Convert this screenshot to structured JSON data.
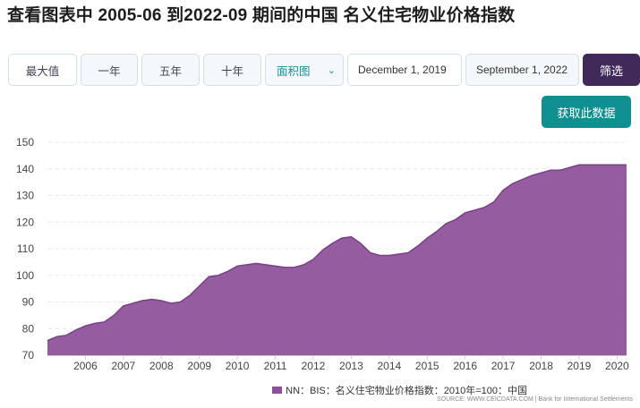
{
  "title": "查看图表中 2005-06 到2022-09 期间的中国 名义住宅物业价格指数",
  "toolbar": {
    "max_label": "最大值",
    "one_year_label": "一年",
    "five_year_label": "五年",
    "ten_year_label": "十年",
    "chart_type_label": "面积图",
    "start_date": "December 1, 2019",
    "end_date": "September 1, 2022",
    "filter_label": "筛选",
    "get_data_label": "获取此数据"
  },
  "icons": {
    "chart_type_dropdown": "chevron-down-icon"
  },
  "colors": {
    "series_fill": "#8c4f98",
    "filter_button": "#3f2a5a",
    "get_data_button": "#0f8f8f"
  },
  "legend_label": "NN：BIS：名义住宅物业价格指数：2010年=100：中国",
  "source_text": "SOURCE: WWW.CEICDATA.COM | Bank for International Settlements",
  "chart_data": {
    "type": "area",
    "title": "",
    "xlabel": "",
    "ylabel": "",
    "ylim": [
      70,
      150
    ],
    "yticks": [
      70,
      80,
      90,
      100,
      110,
      120,
      130,
      140,
      150
    ],
    "xlim": [
      2005.5,
      2020.75
    ],
    "xticks": [
      "2006",
      "2007",
      "2008",
      "2009",
      "2010",
      "2011",
      "2012",
      "2013",
      "2014",
      "2015",
      "2016",
      "2017",
      "2018",
      "2019",
      "2020"
    ],
    "grid": true,
    "legend_position": "bottom-right",
    "series": [
      {
        "name": "NN：BIS：名义住宅物业价格指数：2010年=100：中国",
        "x": [
          2005.5,
          2005.75,
          2006.0,
          2006.25,
          2006.5,
          2006.75,
          2007.0,
          2007.25,
          2007.5,
          2007.75,
          2008.0,
          2008.25,
          2008.5,
          2008.75,
          2009.0,
          2009.25,
          2009.5,
          2009.75,
          2010.0,
          2010.25,
          2010.5,
          2010.75,
          2011.0,
          2011.25,
          2011.5,
          2011.75,
          2012.0,
          2012.25,
          2012.5,
          2012.75,
          2013.0,
          2013.25,
          2013.5,
          2013.75,
          2014.0,
          2014.25,
          2014.5,
          2014.75,
          2015.0,
          2015.25,
          2015.5,
          2015.75,
          2016.0,
          2016.25,
          2016.5,
          2016.75,
          2017.0,
          2017.25,
          2017.5,
          2017.75,
          2018.0,
          2018.25,
          2018.5,
          2018.75,
          2019.0,
          2019.25,
          2019.5,
          2019.75,
          2020.0,
          2020.25,
          2020.5,
          2020.75
        ],
        "values": [
          75.5,
          77.0,
          77.5,
          79.5,
          81.0,
          82.0,
          82.5,
          85.0,
          88.5,
          89.5,
          90.5,
          91.0,
          90.5,
          89.5,
          90.0,
          92.5,
          96.0,
          99.5,
          100.0,
          101.5,
          103.5,
          104.0,
          104.5,
          104.0,
          103.5,
          103.0,
          103.0,
          104.0,
          106.0,
          109.5,
          112.0,
          114.0,
          114.5,
          112.0,
          108.5,
          107.5,
          107.5,
          108.0,
          108.5,
          111.0,
          114.0,
          116.5,
          119.5,
          121.0,
          123.5,
          124.5,
          125.5,
          127.5,
          132.0,
          134.5,
          136.0,
          137.5,
          138.5,
          139.5,
          139.5,
          140.5,
          141.5,
          141.5,
          141.5,
          141.5,
          141.5,
          141.5
        ]
      }
    ]
  }
}
